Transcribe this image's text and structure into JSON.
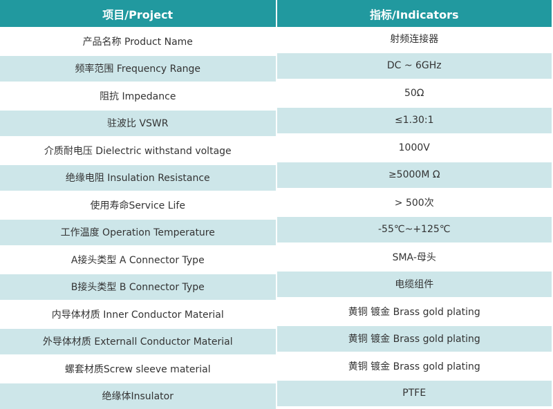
{
  "table": {
    "header": [
      "项目/Project",
      "指标/Indicators"
    ],
    "rows": [
      [
        "产品名称 Product Name",
        "射频连接器"
      ],
      [
        "频率范围 Frequency Range",
        "DC ~ 6GHz"
      ],
      [
        "阻抗 Impedance",
        "50Ω"
      ],
      [
        "驻波比 VSWR",
        "≤1.30:1"
      ],
      [
        "介质耐电压 Dielectric withstand voltage",
        "1000V"
      ],
      [
        "绝缘电阻 Insulation Resistance",
        "≥5000M Ω"
      ],
      [
        "使用寿命Service Life",
        "> 500次"
      ],
      [
        "工作温度 Operation Temperature",
        "-55℃~+125℃"
      ],
      [
        "A接头类型 A Connector Type",
        "SMA-母头"
      ],
      [
        "B接头类型 B Connector Type",
        "电缆组件"
      ],
      [
        "内导体材质 Inner Conductor Material",
        "黄铜 镀金 Brass gold plating"
      ],
      [
        "外导体材质 Externall Conductor Material",
        "黄铜 镀金 Brass gold plating"
      ],
      [
        "螺套材质Screw sleeve material",
        "黄铜 镀金 Brass gold plating"
      ],
      [
        "绝缘体Insulator",
        "PTFE"
      ]
    ]
  }
}
